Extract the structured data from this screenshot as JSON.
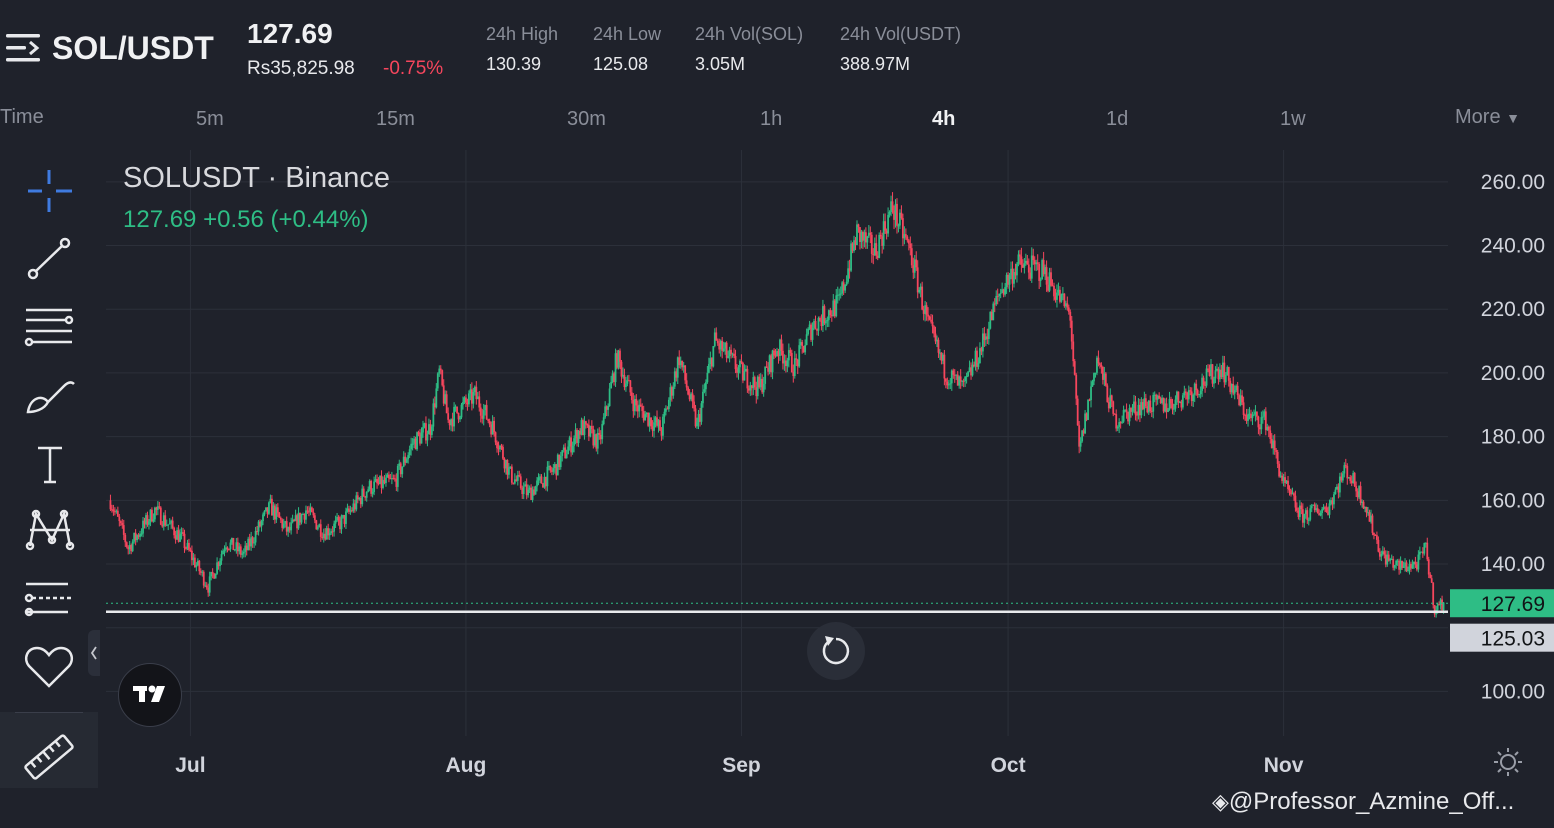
{
  "header": {
    "pair": "SOL/USDT",
    "last_price": "127.69",
    "fiat_price": "Rs35,825.98",
    "change_pct": "-0.75%",
    "stats": [
      {
        "label": "24h High",
        "value": "130.39"
      },
      {
        "label": "24h Low",
        "value": "125.08"
      },
      {
        "label": "24h Vol(SOL)",
        "value": "3.05M"
      },
      {
        "label": "24h Vol(USDT)",
        "value": "388.97M"
      }
    ]
  },
  "timeframes": {
    "time_label": "Time",
    "items": [
      "5m",
      "15m",
      "30m",
      "1h",
      "4h",
      "1d",
      "1w"
    ],
    "active": "4h",
    "more_label": "More"
  },
  "legend": {
    "title": "SOLUSDT · Binance",
    "values": "127.69  +0.56 (+0.44%)"
  },
  "watermark": "@Professor_Azmine_Off...",
  "colors": {
    "up": "#2ebd85",
    "down": "#f6465d",
    "background": "#1f222b",
    "grid": "#2c303a",
    "price_tag": "#2ebd85",
    "low_tag": "#d1d4dc"
  },
  "chart_data": {
    "type": "candlestick",
    "title": "SOLUSDT · Binance",
    "interval": "4h",
    "x_ticks": [
      "Jul",
      "Aug",
      "Sep",
      "Oct",
      "Nov"
    ],
    "y_ticks": [
      "260.00",
      "240.00",
      "220.00",
      "200.00",
      "180.00",
      "160.00",
      "140.00",
      "100.00"
    ],
    "ylim": [
      86,
      270
    ],
    "current_price": 127.69,
    "current_price_label": "127.69",
    "marked_line_price": 125.03,
    "marked_line_label": "125.03",
    "close_path": [
      {
        "date": "Jun 22",
        "close": 160
      },
      {
        "date": "Jun 24",
        "close": 145
      },
      {
        "date": "Jun 27",
        "close": 157
      },
      {
        "date": "Jun 30",
        "close": 148
      },
      {
        "date": "Jul 2",
        "close": 138
      },
      {
        "date": "Jul 3",
        "close": 133
      },
      {
        "date": "Jul 5",
        "close": 147
      },
      {
        "date": "Jul 7",
        "close": 143
      },
      {
        "date": "Jul 10",
        "close": 158
      },
      {
        "date": "Jul 12",
        "close": 150
      },
      {
        "date": "Jul 14",
        "close": 157
      },
      {
        "date": "Jul 16",
        "close": 150
      },
      {
        "date": "Jul 18",
        "close": 153
      },
      {
        "date": "Jul 21",
        "close": 164
      },
      {
        "date": "Jul 24",
        "close": 166
      },
      {
        "date": "Jul 26",
        "close": 178
      },
      {
        "date": "Jul 28",
        "close": 183
      },
      {
        "date": "Jul 29",
        "close": 200
      },
      {
        "date": "Jul 30",
        "close": 185
      },
      {
        "date": "Aug 2",
        "close": 193
      },
      {
        "date": "Aug 4",
        "close": 183
      },
      {
        "date": "Aug 6",
        "close": 168
      },
      {
        "date": "Aug 8",
        "close": 162
      },
      {
        "date": "Aug 11",
        "close": 170
      },
      {
        "date": "Aug 14",
        "close": 183
      },
      {
        "date": "Aug 16",
        "close": 178
      },
      {
        "date": "Aug 18",
        "close": 205
      },
      {
        "date": "Aug 20",
        "close": 190
      },
      {
        "date": "Aug 23",
        "close": 182
      },
      {
        "date": "Aug 25",
        "close": 205
      },
      {
        "date": "Aug 27",
        "close": 183
      },
      {
        "date": "Aug 29",
        "close": 210
      },
      {
        "date": "Sep 1",
        "close": 200
      },
      {
        "date": "Sep 3",
        "close": 195
      },
      {
        "date": "Sep 5",
        "close": 208
      },
      {
        "date": "Sep 7",
        "close": 202
      },
      {
        "date": "Sep 9",
        "close": 215
      },
      {
        "date": "Sep 12",
        "close": 222
      },
      {
        "date": "Sep 14",
        "close": 244
      },
      {
        "date": "Sep 16",
        "close": 238
      },
      {
        "date": "Sep 18",
        "close": 252
      },
      {
        "date": "Sep 20",
        "close": 238
      },
      {
        "date": "Sep 22",
        "close": 215
      },
      {
        "date": "Sep 24",
        "close": 200
      },
      {
        "date": "Sep 26",
        "close": 195
      },
      {
        "date": "Sep 28",
        "close": 208
      },
      {
        "date": "Sep 30",
        "close": 225
      },
      {
        "date": "Oct 2",
        "close": 234
      },
      {
        "date": "Oct 5",
        "close": 232
      },
      {
        "date": "Oct 8",
        "close": 218
      },
      {
        "date": "Oct 9",
        "close": 175
      },
      {
        "date": "Oct 11",
        "close": 205
      },
      {
        "date": "Oct 13",
        "close": 185
      },
      {
        "date": "Oct 16",
        "close": 190
      },
      {
        "date": "Oct 19",
        "close": 190
      },
      {
        "date": "Oct 22",
        "close": 195
      },
      {
        "date": "Oct 25",
        "close": 202
      },
      {
        "date": "Oct 28",
        "close": 186
      },
      {
        "date": "Oct 30",
        "close": 185
      },
      {
        "date": "Nov 1",
        "close": 165
      },
      {
        "date": "Nov 3",
        "close": 155
      },
      {
        "date": "Nov 6",
        "close": 158
      },
      {
        "date": "Nov 8",
        "close": 170
      },
      {
        "date": "Nov 10",
        "close": 160
      },
      {
        "date": "Nov 12",
        "close": 143
      },
      {
        "date": "Nov 14",
        "close": 139
      },
      {
        "date": "Nov 16",
        "close": 140
      },
      {
        "date": "Nov 17",
        "close": 145
      },
      {
        "date": "Nov 18",
        "close": 126
      },
      {
        "date": "Nov 19",
        "close": 127.69
      }
    ]
  }
}
